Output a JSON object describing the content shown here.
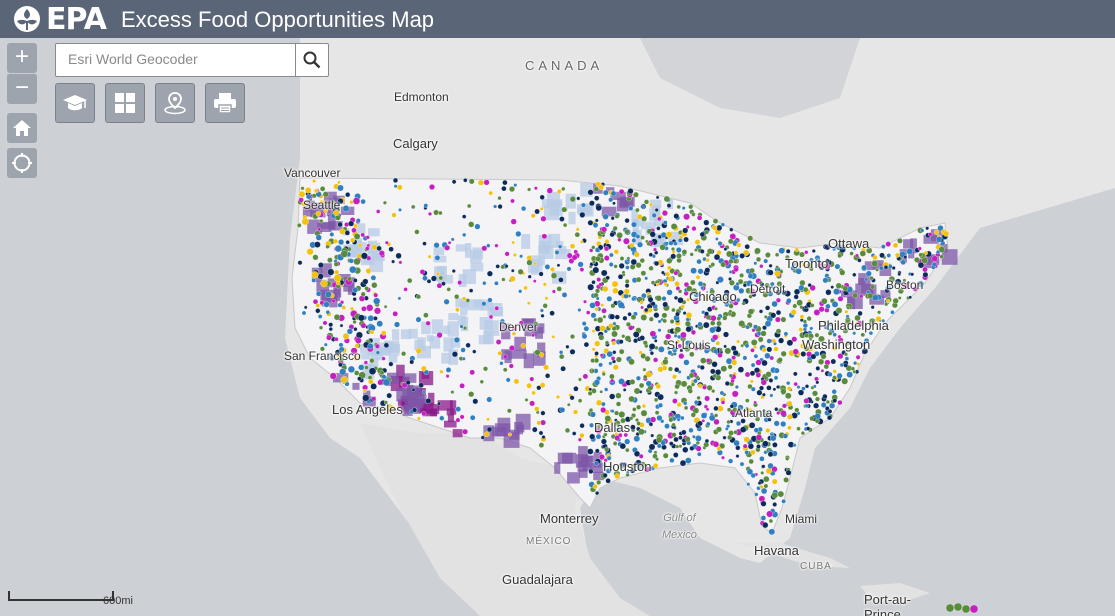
{
  "header": {
    "logo_text": "EPA",
    "title": "Excess Food Opportunities Map"
  },
  "search": {
    "placeholder": "Esri World Geocoder"
  },
  "controls": {
    "zoom_in": "+",
    "zoom_out": "−"
  },
  "scale": {
    "label": "600mi"
  },
  "labels": {
    "canada": "CANADA",
    "edmonton": "Edmonton",
    "calgary": "Calgary",
    "vancouver": "Vancouver",
    "seattle": "Seattle",
    "ottawa": "Ottawa",
    "toronto": "Toronto",
    "boston": "Boston",
    "chicago": "Chicago",
    "detroit": "Detroit",
    "denver": "Denver",
    "st_louis": "St Louis",
    "philadelphia": "Philadelphia",
    "washington": "Washington",
    "san_francisco": "San Francisco",
    "los_angeles": "Los Angeles",
    "atlanta": "Atlanta",
    "dallas": "Dallas",
    "houston": "Houston",
    "miami": "Miami",
    "monterrey": "Monterrey",
    "mexico": "MÉXICO",
    "gulf_of_mexico": "Gulf of\nMexico",
    "havana": "Havana",
    "cuba": "CUBA",
    "guadalajara": "Guadalajara",
    "port_au_prince": "Port-au-Prince"
  },
  "colors": {
    "land": "#e6e6e6",
    "water": "#cdd0d4",
    "usa": "#f4f4f6",
    "point_navy": "#0d2b5a",
    "point_blue": "#2f7fc1",
    "point_green": "#5a8a3c",
    "point_yellow": "#f4c20d",
    "point_magenta": "#c61fc1",
    "region_lightblue": "#b7cbe6",
    "region_purple": "#7e57a8",
    "region_deep": "#8a1a8a"
  },
  "icons": [
    "search-icon",
    "home-icon",
    "locate-icon",
    "education-icon",
    "grid-icon",
    "location-pin-icon",
    "print-icon"
  ]
}
